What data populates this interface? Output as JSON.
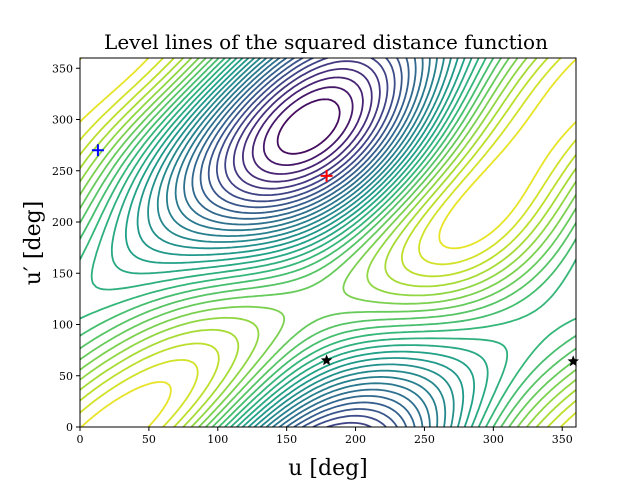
{
  "chart_data": {
    "type": "contour",
    "title": "Level lines of the squared distance function",
    "xlabel": "u [deg]",
    "ylabel": "u′ [deg]",
    "xlim": [
      0,
      360
    ],
    "ylim": [
      0,
      360
    ],
    "xticks": [
      "0",
      "50",
      "100",
      "150",
      "200",
      "250",
      "300",
      "350"
    ],
    "yticks": [
      "0",
      "50",
      "100",
      "150",
      "200",
      "250",
      "300",
      "350"
    ],
    "xtick_values": [
      0,
      50,
      100,
      150,
      200,
      250,
      300,
      350
    ],
    "ytick_values": [
      0,
      50,
      100,
      150,
      200,
      250,
      300,
      350
    ],
    "colormap": "viridis",
    "grid": false,
    "markers": [
      {
        "kind": "plus",
        "color": "#0000ff",
        "x": 13,
        "y": 270
      },
      {
        "kind": "plus",
        "color": "#ff0000",
        "x": 179,
        "y": 245
      },
      {
        "kind": "star",
        "color": "#000000",
        "x": 179,
        "y": 65
      },
      {
        "kind": "star",
        "color": "#000000",
        "x": 358,
        "y": 64
      }
    ]
  }
}
